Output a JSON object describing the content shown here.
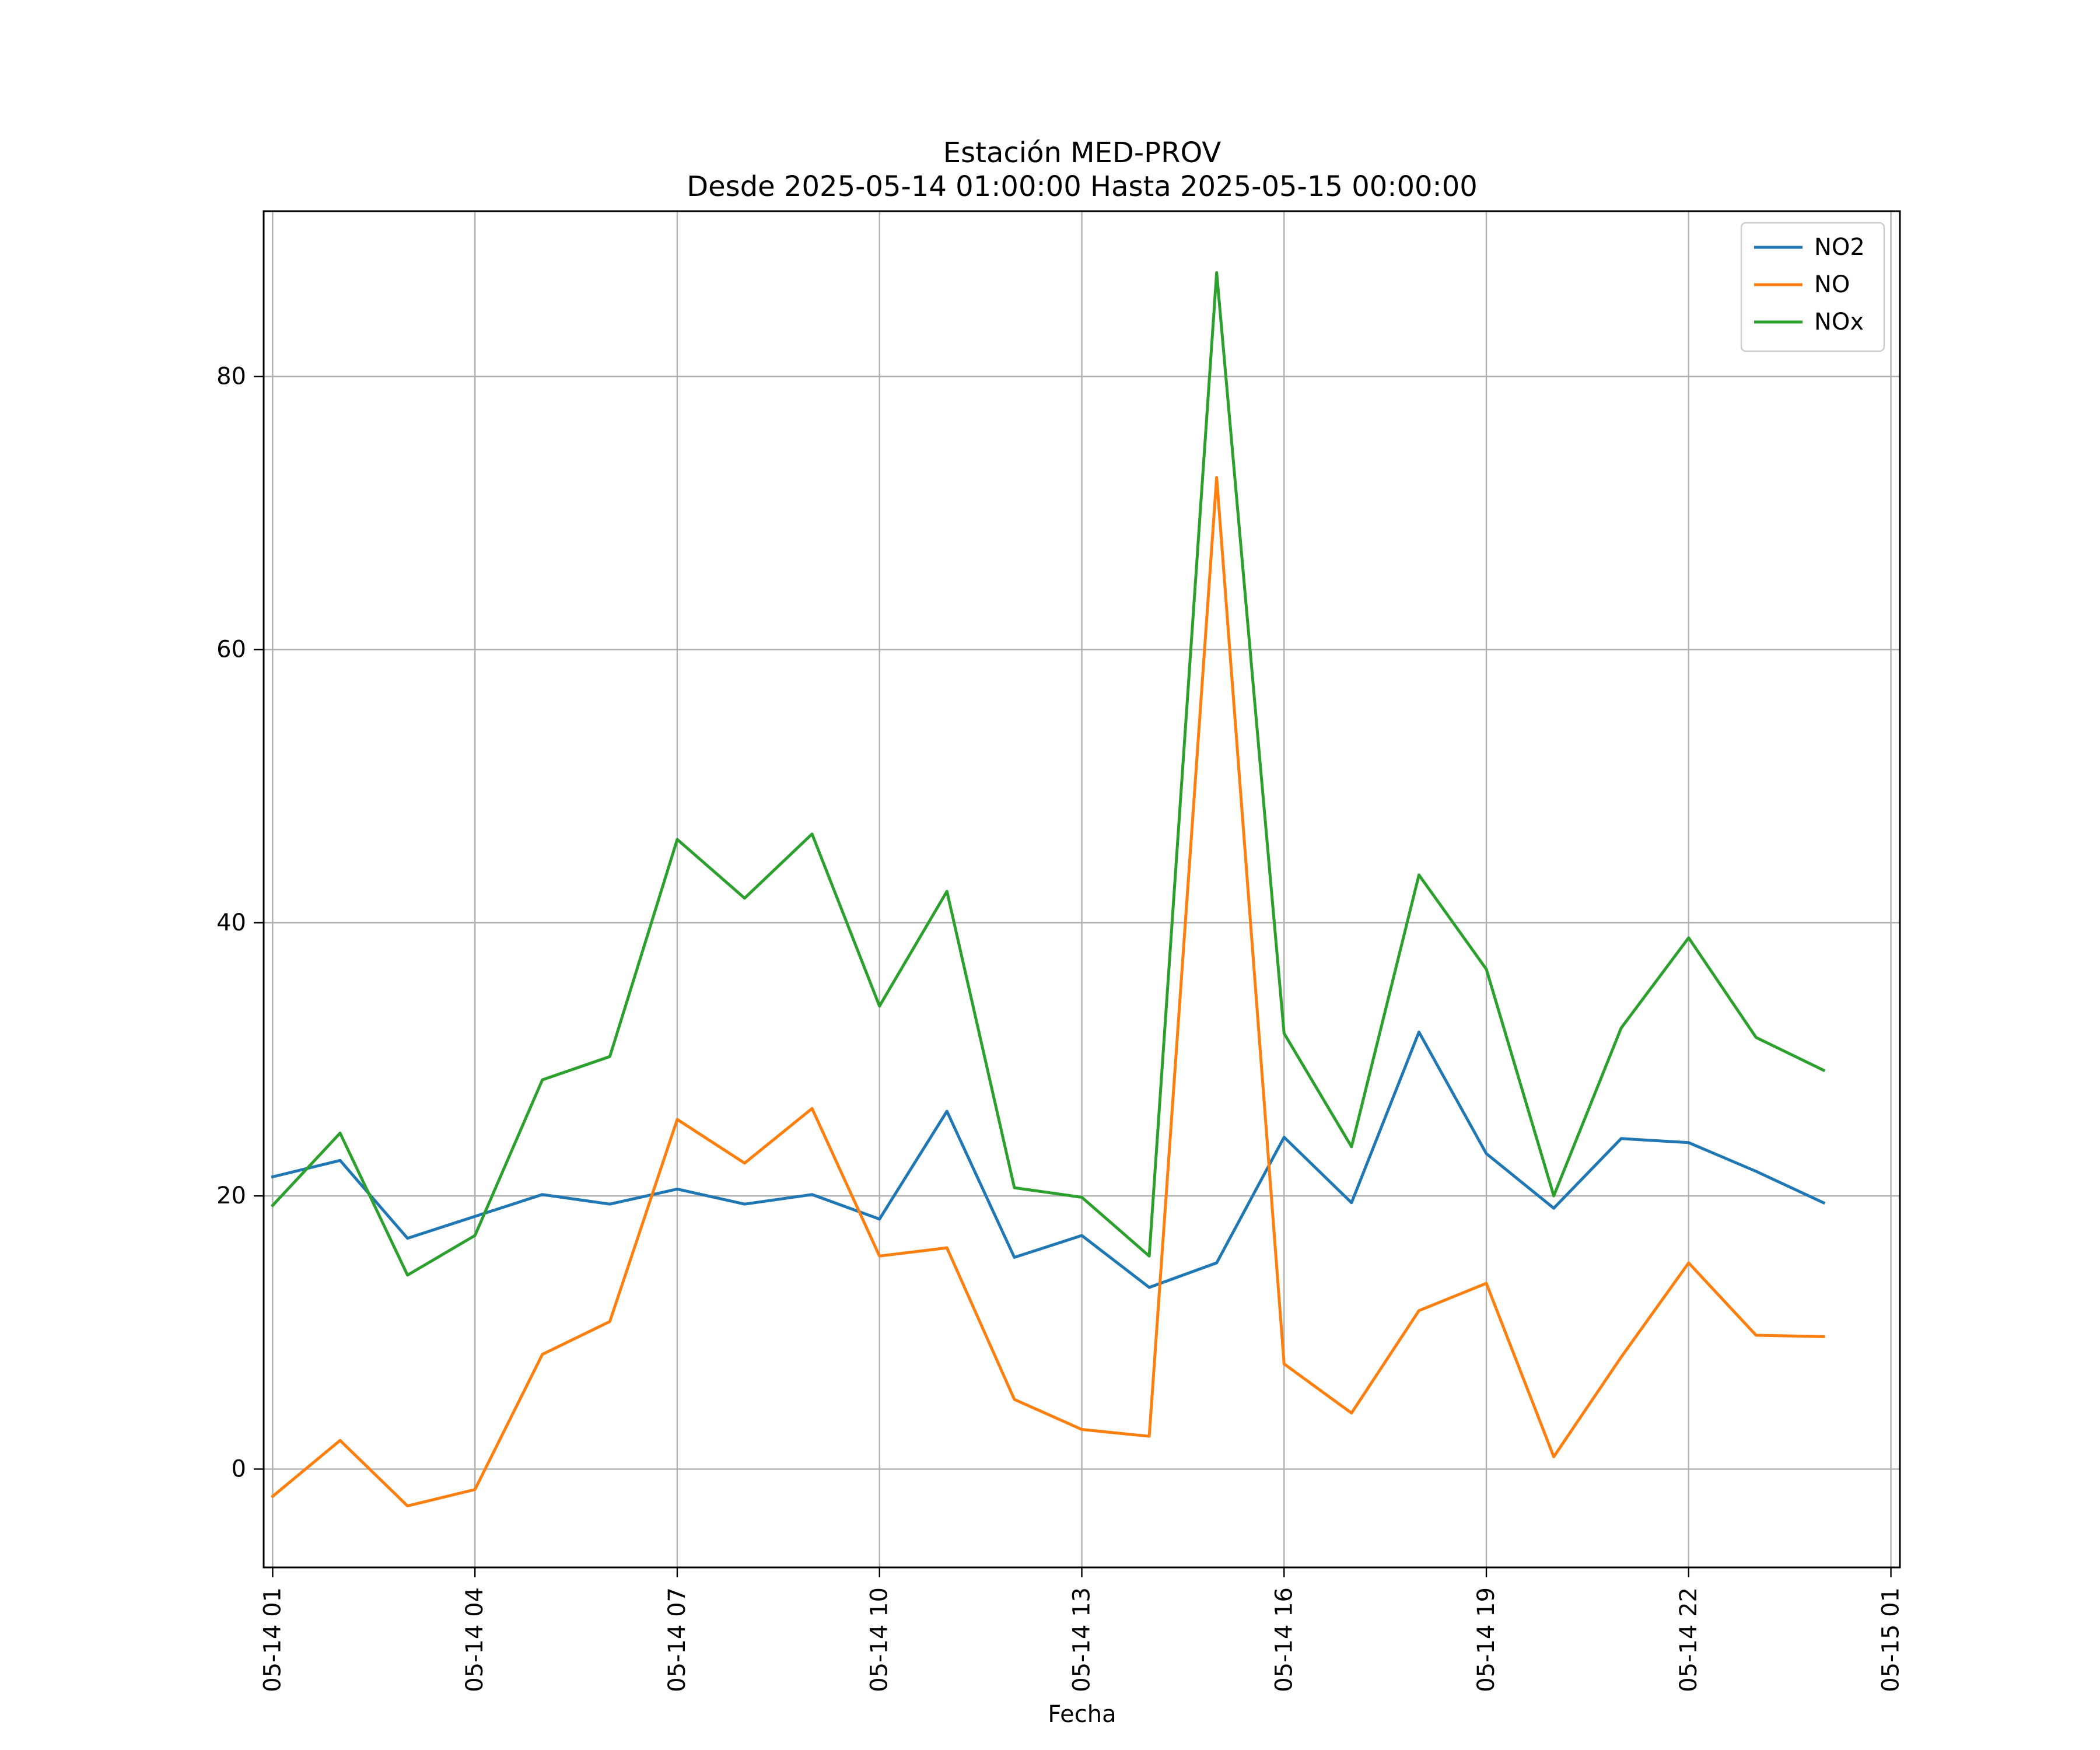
{
  "chart_data": {
    "type": "line",
    "title": "Estación MED-PROV",
    "subtitle": "Desde 2025-05-14 01:00:00 Hasta 2025-05-15 00:00:00",
    "xlabel": "Fecha",
    "ylabel": "",
    "x": [
      "2025-05-14 01:00",
      "2025-05-14 02:00",
      "2025-05-14 03:00",
      "2025-05-14 04:00",
      "2025-05-14 05:00",
      "2025-05-14 06:00",
      "2025-05-14 07:00",
      "2025-05-14 08:00",
      "2025-05-14 09:00",
      "2025-05-14 10:00",
      "2025-05-14 11:00",
      "2025-05-14 12:00",
      "2025-05-14 13:00",
      "2025-05-14 14:00",
      "2025-05-14 15:00",
      "2025-05-14 16:00",
      "2025-05-14 17:00",
      "2025-05-14 18:00",
      "2025-05-14 19:00",
      "2025-05-14 20:00",
      "2025-05-14 21:00",
      "2025-05-14 22:00",
      "2025-05-14 23:00",
      "2025-05-15 00:00"
    ],
    "series": [
      {
        "name": "NO2",
        "color": "#1f77b4",
        "values": [
          21.4,
          22.6,
          16.9,
          18.5,
          20.1,
          19.4,
          20.5,
          19.4,
          20.1,
          18.3,
          26.2,
          15.5,
          17.1,
          13.3,
          15.1,
          24.3,
          19.5,
          32.0,
          23.1,
          19.1,
          24.2,
          23.9,
          21.8,
          19.5
        ]
      },
      {
        "name": "NO",
        "color": "#ff7f0e",
        "values": [
          -2.0,
          2.1,
          -2.7,
          -1.5,
          8.4,
          10.8,
          25.6,
          22.4,
          26.4,
          15.6,
          16.2,
          5.1,
          2.9,
          2.4,
          72.6,
          7.7,
          4.1,
          11.6,
          13.6,
          0.9,
          8.2,
          15.1,
          9.8,
          9.7
        ]
      },
      {
        "name": "NOx",
        "color": "#2ca02c",
        "values": [
          19.3,
          24.6,
          14.2,
          17.1,
          28.5,
          30.2,
          46.1,
          41.8,
          46.5,
          33.9,
          42.3,
          20.6,
          19.9,
          15.6,
          87.6,
          31.9,
          23.6,
          43.5,
          36.6,
          20.0,
          32.3,
          38.9,
          31.6,
          29.2
        ]
      }
    ],
    "x_ticks": [
      "05-14 01",
      "05-14 04",
      "05-14 07",
      "05-14 10",
      "05-14 13",
      "05-14 16",
      "05-14 19",
      "05-14 22",
      "05-15 01"
    ],
    "y_ticks": [
      0,
      20,
      40,
      60,
      80
    ],
    "ylim": [
      -7.2,
      92.1
    ],
    "xlim": [
      "2025-05-14 00:52",
      "2025-05-15 01:08"
    ],
    "grid": true,
    "legend_position": "top-right"
  }
}
